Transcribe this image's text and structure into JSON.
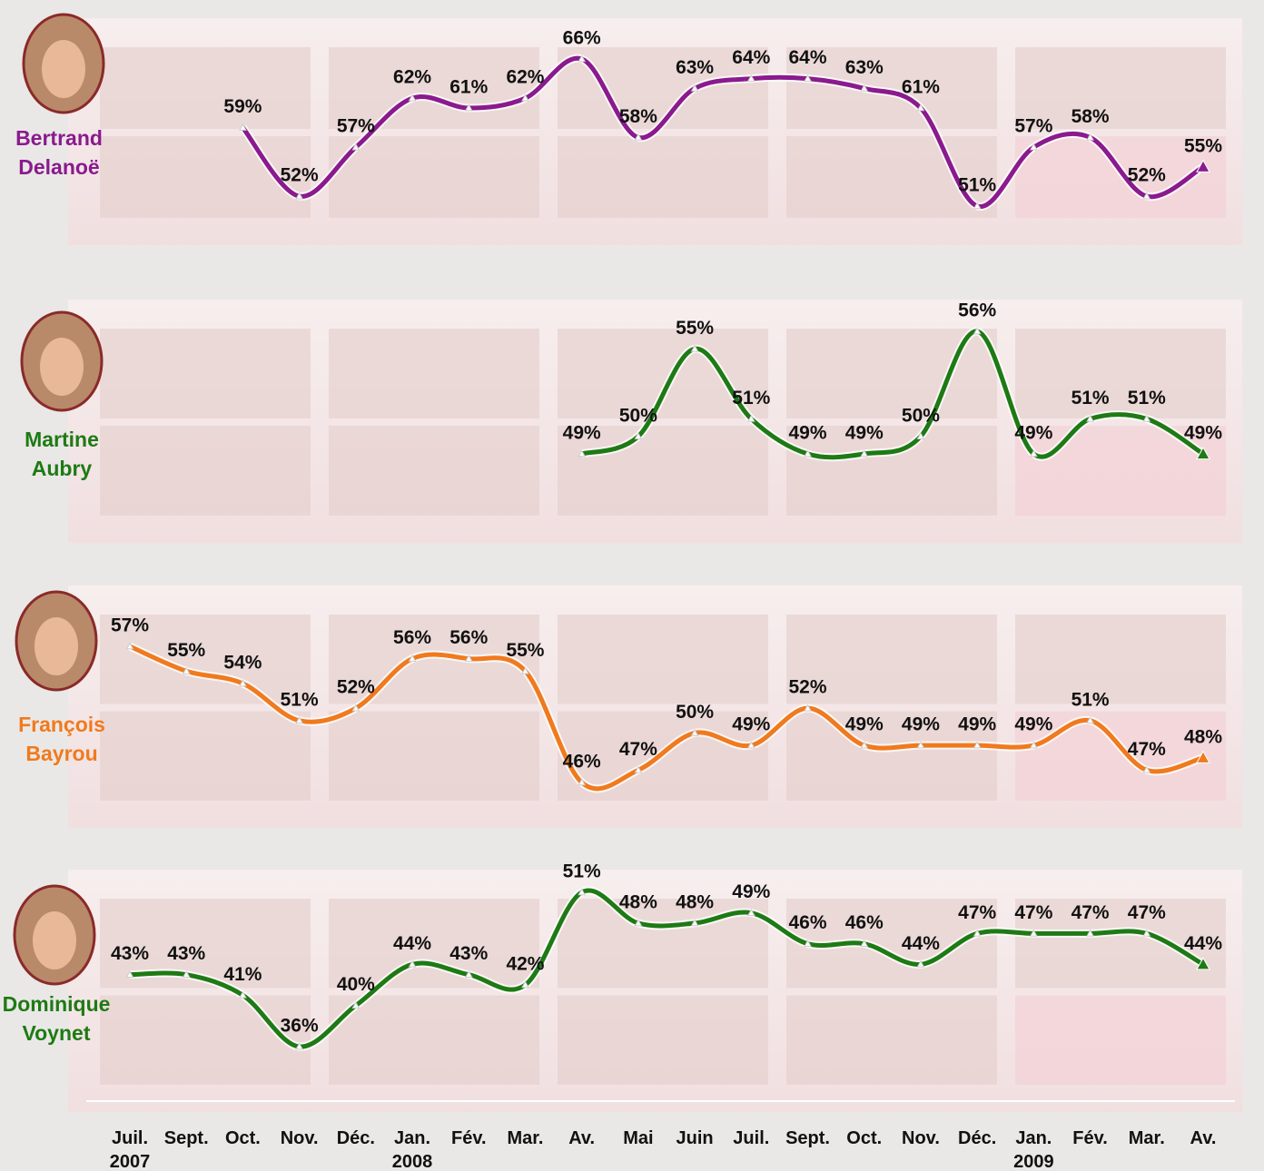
{
  "chart_data": [
    {
      "type": "line",
      "series": [
        {
          "name": "Bertrand Delanoë",
          "color": "#8a1a8e",
          "values": [
            null,
            null,
            59,
            52,
            57,
            62,
            61,
            62,
            66,
            58,
            63,
            64,
            64,
            63,
            61,
            51,
            57,
            58,
            52,
            55
          ],
          "value_labels": [
            null,
            null,
            "59%",
            "52%",
            "57%",
            "62%",
            "61%",
            "62%",
            "66%",
            "58%",
            "63%",
            "64%",
            "64%",
            "63%",
            "61%",
            "51%",
            "57%",
            "58%",
            "52%",
            "55%"
          ]
        }
      ],
      "ylim": [
        51,
        66
      ]
    },
    {
      "type": "line",
      "series": [
        {
          "name": "Martine Aubry",
          "color": "#1e7a14",
          "values": [
            null,
            null,
            null,
            null,
            null,
            null,
            null,
            null,
            49,
            50,
            55,
            51,
            49,
            49,
            50,
            56,
            49,
            51,
            51,
            49
          ],
          "value_labels": [
            null,
            null,
            null,
            null,
            null,
            null,
            null,
            null,
            "49%",
            "50%",
            "55%",
            "51%",
            "49%",
            "49%",
            "50%",
            "56%",
            "49%",
            "51%",
            "51%",
            "49%"
          ]
        }
      ],
      "ylim": [
        49,
        56
      ]
    },
    {
      "type": "line",
      "series": [
        {
          "name": "François Bayrou",
          "color": "#f07a1e",
          "values": [
            57,
            55,
            54,
            51,
            52,
            56,
            56,
            55,
            46,
            47,
            50,
            49,
            52,
            49,
            49,
            49,
            49,
            51,
            47,
            48
          ],
          "value_labels": [
            "57%",
            "55%",
            "54%",
            "51%",
            "52%",
            "56%",
            "56%",
            "55%",
            "46%",
            "47%",
            "50%",
            "49%",
            "52%",
            "49%",
            "49%",
            "49%",
            "49%",
            "51%",
            "47%",
            "48%"
          ]
        }
      ],
      "ylim": [
        46,
        57
      ]
    },
    {
      "type": "line",
      "series": [
        {
          "name": "Dominique Voynet",
          "color": "#1e7a14",
          "values": [
            43,
            43,
            41,
            36,
            40,
            44,
            43,
            42,
            51,
            48,
            48,
            49,
            46,
            46,
            44,
            47,
            47,
            47,
            47,
            44
          ],
          "value_labels": [
            "43%",
            "43%",
            "41%",
            "36%",
            "40%",
            "44%",
            "43%",
            "42%",
            "51%",
            "48%",
            "48%",
            "49%",
            "46%",
            "46%",
            "44%",
            "47%",
            "47%",
            "47%",
            "47%",
            "44%"
          ]
        }
      ],
      "ylim": [
        36,
        51
      ],
      "categories": [
        "Juil. 2007",
        "Sept.",
        "Oct.",
        "Nov.",
        "Déc.",
        "Jan. 2008",
        "Fév.",
        "Mar.",
        "Av.",
        "Mai",
        "Juin",
        "Juil.",
        "Sept.",
        "Oct.",
        "Nov.",
        "Déc.",
        "Jan. 2009",
        "Fév.",
        "Mar.",
        "Av."
      ]
    }
  ]
}
